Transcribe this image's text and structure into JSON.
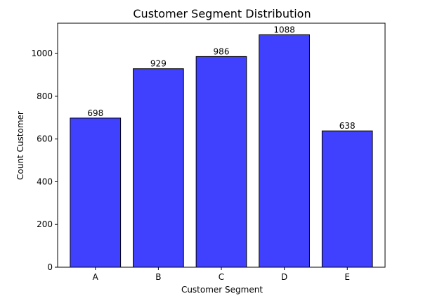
{
  "chart_data": {
    "type": "bar",
    "title": "Customer Segment Distribution",
    "xlabel": "Customer Segment",
    "ylabel": "Count Customer",
    "categories": [
      "A",
      "B",
      "C",
      "D",
      "E"
    ],
    "values": [
      698,
      929,
      986,
      1088,
      638
    ],
    "data_labels": [
      "698",
      "929",
      "986",
      "1088",
      "638"
    ],
    "ylim": [
      0,
      1142
    ],
    "yticks": [
      0,
      200,
      400,
      600,
      800,
      1000
    ],
    "ytick_labels": [
      "0",
      "200",
      "400",
      "600",
      "800",
      "1000"
    ],
    "grid": false,
    "colors": {
      "bar_fill": "#4040ff",
      "bar_edge": "#000000"
    }
  }
}
